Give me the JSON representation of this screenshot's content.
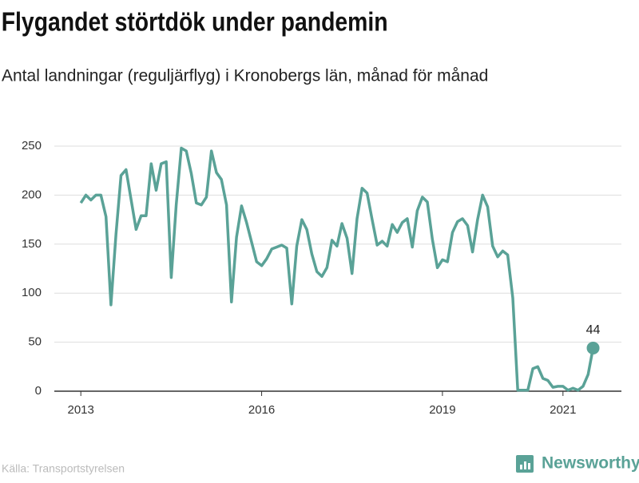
{
  "chart_data": {
    "type": "line",
    "title": "Flygandet störtdök under pandemin",
    "subtitle": "Antal landningar (reguljärflyg) i Kronobergs län, månad för månad",
    "source": "Källa: Transportstyrelsen",
    "brand": "Newsworthy",
    "color": "#5aa297",
    "grid": true,
    "xlim": [
      2012.56,
      2021.97
    ],
    "ylim": [
      0,
      250
    ],
    "xticks": [
      2013,
      2016,
      2019,
      2021
    ],
    "yticks": [
      0,
      50,
      100,
      150,
      200,
      250
    ],
    "x": [
      2013,
      2013.083,
      2013.167,
      2013.25,
      2013.333,
      2013.417,
      2013.5,
      2013.583,
      2013.667,
      2013.75,
      2013.833,
      2013.917,
      2014,
      2014.083,
      2014.167,
      2014.25,
      2014.333,
      2014.417,
      2014.5,
      2014.583,
      2014.667,
      2014.75,
      2014.833,
      2014.917,
      2015,
      2015.083,
      2015.167,
      2015.25,
      2015.333,
      2015.417,
      2015.5,
      2015.583,
      2015.667,
      2015.75,
      2015.833,
      2015.917,
      2016,
      2016.083,
      2016.167,
      2016.25,
      2016.333,
      2016.417,
      2016.5,
      2016.583,
      2016.667,
      2016.75,
      2016.833,
      2016.917,
      2017,
      2017.083,
      2017.167,
      2017.25,
      2017.333,
      2017.417,
      2017.5,
      2017.583,
      2017.667,
      2017.75,
      2017.833,
      2017.917,
      2018,
      2018.083,
      2018.167,
      2018.25,
      2018.333,
      2018.417,
      2018.5,
      2018.583,
      2018.667,
      2018.75,
      2018.833,
      2018.917,
      2019,
      2019.083,
      2019.167,
      2019.25,
      2019.333,
      2019.417,
      2019.5,
      2019.583,
      2019.667,
      2019.75,
      2019.833,
      2019.917,
      2020,
      2020.083,
      2020.167,
      2020.25,
      2020.333,
      2020.417,
      2020.5,
      2020.583,
      2020.667,
      2020.75,
      2020.833,
      2020.917,
      2021,
      2021.083,
      2021.167,
      2021.25,
      2021.333,
      2021.417,
      2021.5
    ],
    "values": [
      192,
      200,
      195,
      200,
      200,
      178,
      88,
      160,
      220,
      226,
      196,
      165,
      179,
      179,
      232,
      205,
      232,
      234,
      116,
      190,
      248,
      245,
      222,
      192,
      190,
      198,
      245,
      223,
      216,
      190,
      91,
      157,
      189,
      172,
      152,
      132,
      128,
      135,
      145,
      147,
      149,
      146,
      89,
      148,
      175,
      165,
      140,
      122,
      117,
      126,
      154,
      148,
      171,
      156,
      120,
      176,
      207,
      202,
      175,
      149,
      153,
      148,
      170,
      162,
      172,
      176,
      147,
      184,
      198,
      193,
      155,
      126,
      134,
      132,
      162,
      173,
      176,
      169,
      142,
      175,
      200,
      188,
      148,
      137,
      143,
      139,
      95,
      1,
      1,
      1,
      23,
      25,
      13,
      11,
      4,
      5,
      5,
      1,
      3,
      1,
      5,
      17,
      44
    ]
  }
}
